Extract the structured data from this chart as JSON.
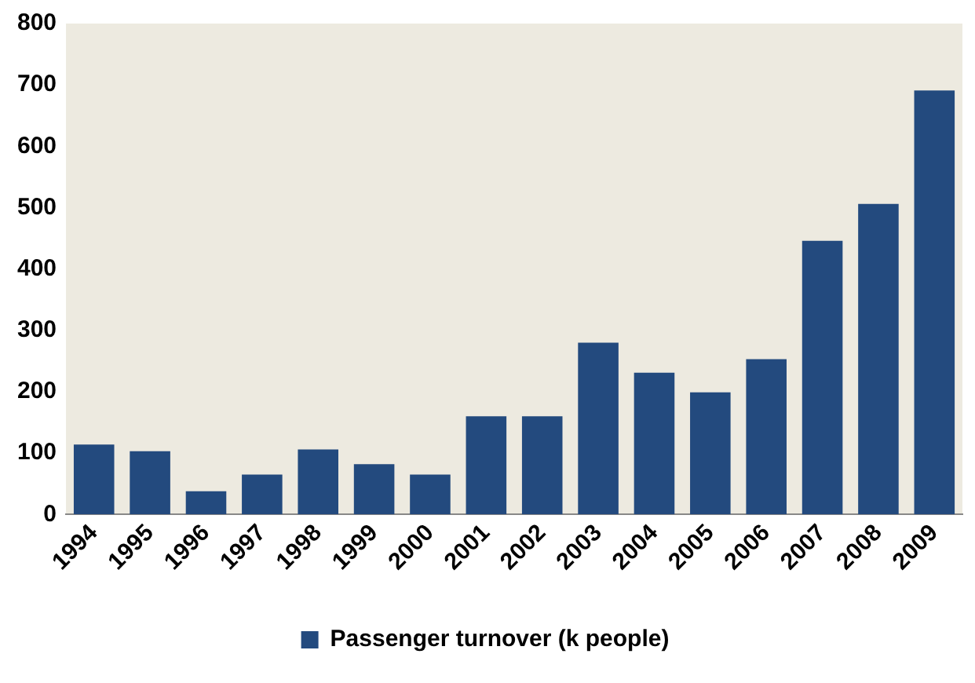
{
  "chart_data": {
    "type": "bar",
    "categories": [
      "1994",
      "1995",
      "1996",
      "1997",
      "1998",
      "1999",
      "2000",
      "2001",
      "2002",
      "2003",
      "2004",
      "2005",
      "2006",
      "2007",
      "2008",
      "2009"
    ],
    "series": [
      {
        "name": "Passenger turnover (k people)",
        "color": "#234a7e",
        "values": [
          114,
          103,
          38,
          65,
          106,
          82,
          65,
          160,
          160,
          280,
          231,
          199,
          253,
          446,
          506,
          691
        ]
      }
    ],
    "ylim": [
      0,
      800
    ],
    "yticks": [
      0,
      100,
      200,
      300,
      400,
      500,
      600,
      700,
      800
    ],
    "grid": false,
    "legend": "bottom"
  }
}
